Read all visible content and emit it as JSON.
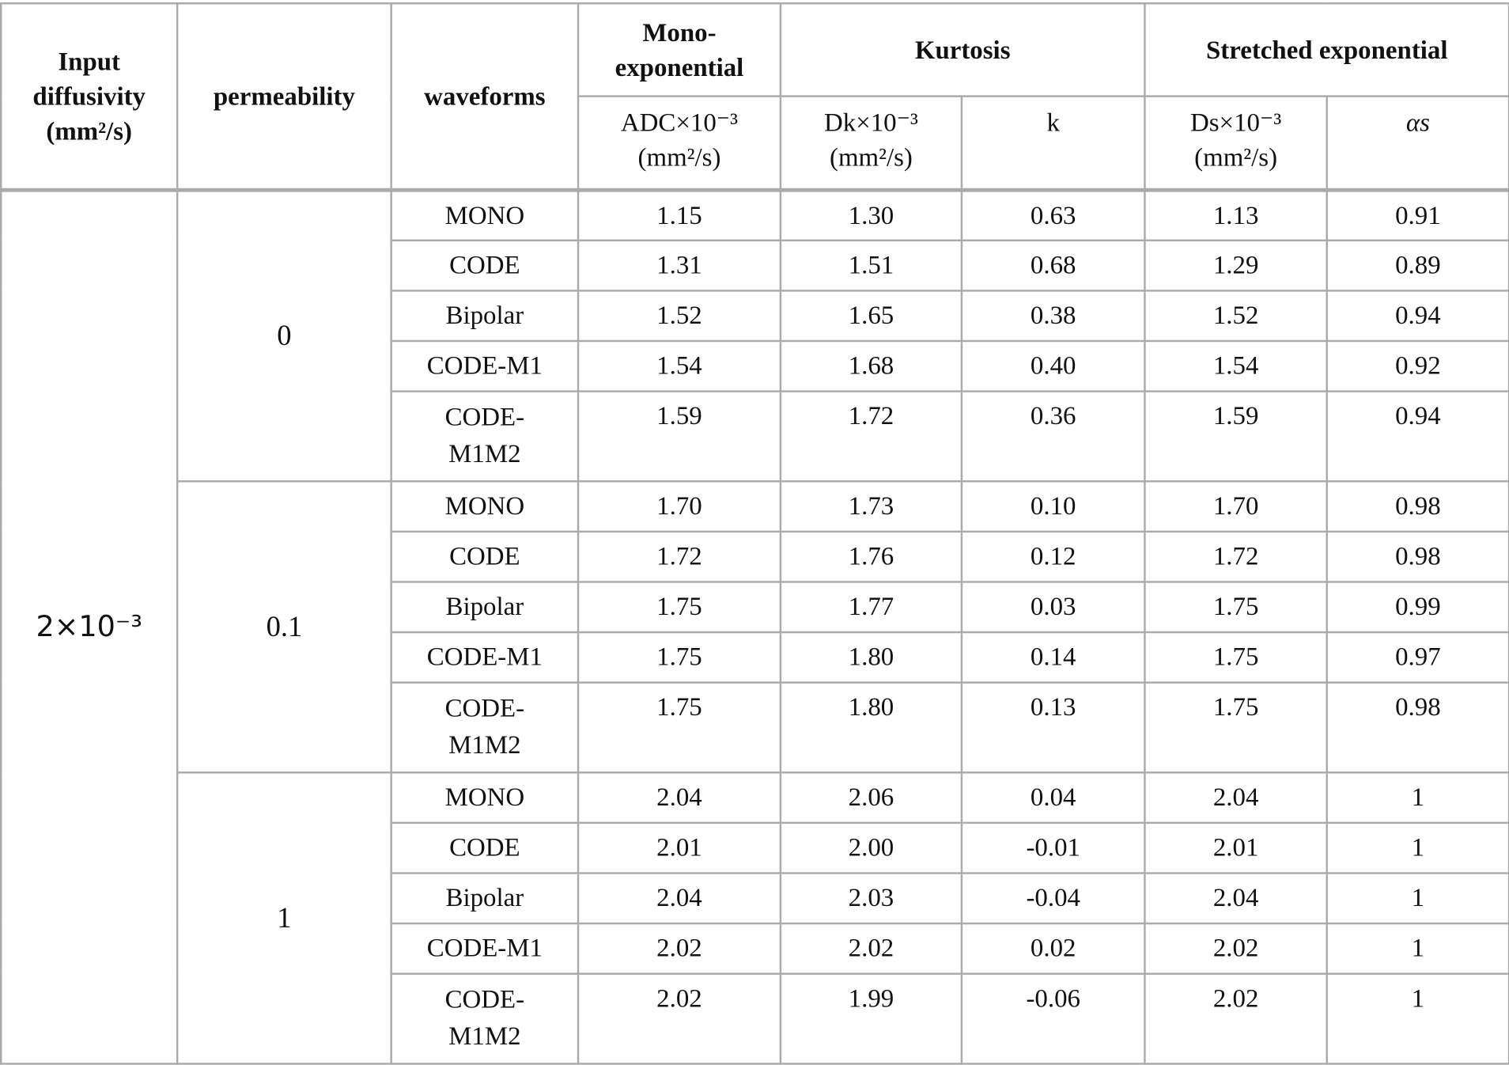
{
  "headers": {
    "input_diffusivity": "Input diffusivity (mm²/s)",
    "permeability": "permeability",
    "waveforms": "waveforms",
    "mono": "Mono-exponential",
    "kurtosis": "Kurtosis",
    "stretched": "Stretched exponential",
    "adc": "ADC×10⁻³ (mm²/s)",
    "dk": "Dk×10⁻³ (mm²/s)",
    "k": "k",
    "ds": "Ds×10⁻³ (mm²/s)",
    "alpha": "αs"
  },
  "input_diffusivity_value": "2×10⁻³",
  "groups": [
    {
      "permeability": "0",
      "rows": [
        [
          "MONO",
          "1.15",
          "1.30",
          "0.63",
          "1.13",
          "0.91"
        ],
        [
          "CODE",
          "1.31",
          "1.51",
          "0.68",
          "1.29",
          "0.89"
        ],
        [
          "Bipolar",
          "1.52",
          "1.65",
          "0.38",
          "1.52",
          "0.94"
        ],
        [
          "CODE-M1",
          "1.54",
          "1.68",
          "0.40",
          "1.54",
          "0.92"
        ],
        [
          "CODE-M1M2",
          "1.59",
          "1.72",
          "0.36",
          "1.59",
          "0.94"
        ]
      ]
    },
    {
      "permeability": "0.1",
      "rows": [
        [
          "MONO",
          "1.70",
          "1.73",
          "0.10",
          "1.70",
          "0.98"
        ],
        [
          "CODE",
          "1.72",
          "1.76",
          "0.12",
          "1.72",
          "0.98"
        ],
        [
          "Bipolar",
          "1.75",
          "1.77",
          "0.03",
          "1.75",
          "0.99"
        ],
        [
          "CODE-M1",
          "1.75",
          "1.80",
          "0.14",
          "1.75",
          "0.97"
        ],
        [
          "CODE-M1M2",
          "1.75",
          "1.80",
          "0.13",
          "1.75",
          "0.98"
        ]
      ]
    },
    {
      "permeability": "1",
      "rows": [
        [
          "MONO",
          "2.04",
          "2.06",
          "0.04",
          "2.04",
          "1"
        ],
        [
          "CODE",
          "2.01",
          "2.00",
          "-0.01",
          "2.01",
          "1"
        ],
        [
          "Bipolar",
          "2.04",
          "2.03",
          "-0.04",
          "2.04",
          "1"
        ],
        [
          "CODE-M1",
          "2.02",
          "2.02",
          "0.02",
          "2.02",
          "1"
        ],
        [
          "CODE-M1M2",
          "2.02",
          "1.99",
          "-0.06",
          "2.02",
          "1"
        ]
      ]
    }
  ]
}
